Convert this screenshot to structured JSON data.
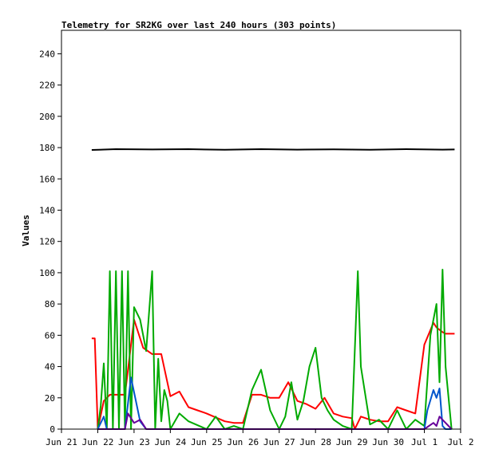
{
  "chart_data": {
    "type": "line",
    "title": "Telemetry for SR2KG over last 240 hours (303 points)",
    "xlabel": "",
    "ylabel": "Values",
    "xlim": [
      "2024-06-21T00:00",
      "2024-07-02T00:00"
    ],
    "ylim": [
      0,
      255
    ],
    "x_ticks": [
      {
        "value": "2024-06-21T00:00",
        "label": "Jun 21"
      },
      {
        "value": "2024-06-22T00:00",
        "label": "Jun 22"
      },
      {
        "value": "2024-06-23T00:00",
        "label": "Jun 23"
      },
      {
        "value": "2024-06-24T00:00",
        "label": "Jun 24"
      },
      {
        "value": "2024-06-25T00:00",
        "label": "Jun 25"
      },
      {
        "value": "2024-06-26T00:00",
        "label": "Jun 26"
      },
      {
        "value": "2024-06-27T00:00",
        "label": "Jun 27"
      },
      {
        "value": "2024-06-28T00:00",
        "label": "Jun 28"
      },
      {
        "value": "2024-06-29T00:00",
        "label": "Jun 29"
      },
      {
        "value": "2024-06-30T00:00",
        "label": "Jun 30"
      },
      {
        "value": "2024-07-01T00:00",
        "label": "Jul 1"
      },
      {
        "value": "2024-07-02T00:00",
        "label": "Jul 2"
      }
    ],
    "y_ticks": [
      0,
      20,
      40,
      60,
      80,
      100,
      120,
      140,
      160,
      180,
      200,
      220,
      240
    ],
    "grid": false,
    "legend": "none",
    "series": [
      {
        "color": "#000000",
        "x": [
          "2024-06-21T20:00",
          "2024-06-22T12:00",
          "2024-06-23T12:00",
          "2024-06-24T12:00",
          "2024-06-25T12:00",
          "2024-06-26T12:00",
          "2024-06-27T12:00",
          "2024-06-28T12:00",
          "2024-06-29T12:00",
          "2024-06-30T12:00",
          "2024-07-01T12:00",
          "2024-07-01T20:00"
        ],
        "values": [
          178.5,
          179,
          178.8,
          179,
          178.6,
          179,
          178.7,
          178.9,
          178.6,
          179,
          178.7,
          178.8
        ]
      },
      {
        "color": "#ff0000",
        "x": [
          "2024-06-21T20:00",
          "2024-06-21T22:00",
          "2024-06-22T00:00",
          "2024-06-22T04:00",
          "2024-06-22T08:00",
          "2024-06-22T12:00",
          "2024-06-22T18:00",
          "2024-06-23T00:00",
          "2024-06-23T06:00",
          "2024-06-23T12:00",
          "2024-06-23T18:00",
          "2024-06-24T00:00",
          "2024-06-24T06:00",
          "2024-06-24T12:00",
          "2024-06-24T18:00",
          "2024-06-25T00:00",
          "2024-06-25T12:00",
          "2024-06-25T18:00",
          "2024-06-26T00:00",
          "2024-06-26T06:00",
          "2024-06-26T12:00",
          "2024-06-26T18:00",
          "2024-06-27T00:00",
          "2024-06-27T06:00",
          "2024-06-27T12:00",
          "2024-06-27T18:00",
          "2024-06-28T00:00",
          "2024-06-28T06:00",
          "2024-06-28T12:00",
          "2024-06-28T18:00",
          "2024-06-29T00:00",
          "2024-06-29T02:00",
          "2024-06-29T06:00",
          "2024-06-29T12:00",
          "2024-06-29T18:00",
          "2024-06-30T00:00",
          "2024-06-30T06:00",
          "2024-06-30T12:00",
          "2024-06-30T18:00",
          "2024-07-01T00:00",
          "2024-07-01T06:00",
          "2024-07-01T08:00",
          "2024-07-01T12:00",
          "2024-07-01T14:00",
          "2024-07-01T20:00"
        ],
        "values": [
          58,
          58,
          0,
          18,
          22,
          22,
          22,
          70,
          52,
          48,
          48,
          21,
          24,
          14,
          12,
          10,
          5,
          4,
          4,
          22,
          22,
          20,
          20,
          30,
          18,
          16,
          13,
          20,
          10,
          8,
          7,
          0,
          8,
          6,
          5,
          5,
          14,
          12,
          10,
          54,
          68,
          65,
          62,
          61,
          61
        ]
      },
      {
        "color": "#00aa00",
        "x": [
          "2024-06-22T00:00",
          "2024-06-22T02:00",
          "2024-06-22T04:00",
          "2024-06-22T06:00",
          "2024-06-22T08:00",
          "2024-06-22T10:00",
          "2024-06-22T12:00",
          "2024-06-22T14:00",
          "2024-06-22T16:00",
          "2024-06-22T18:00",
          "2024-06-22T20:00",
          "2024-06-22T22:00",
          "2024-06-23T00:00",
          "2024-06-23T04:00",
          "2024-06-23T08:00",
          "2024-06-23T12:00",
          "2024-06-23T14:00",
          "2024-06-23T16:00",
          "2024-06-23T18:00",
          "2024-06-23T20:00",
          "2024-06-23T22:00",
          "2024-06-24T00:00",
          "2024-06-24T06:00",
          "2024-06-24T12:00",
          "2024-06-25T00:00",
          "2024-06-25T06:00",
          "2024-06-25T12:00",
          "2024-06-25T18:00",
          "2024-06-26T00:00",
          "2024-06-26T06:00",
          "2024-06-26T12:00",
          "2024-06-26T18:00",
          "2024-06-27T00:00",
          "2024-06-27T04:00",
          "2024-06-27T08:00",
          "2024-06-27T12:00",
          "2024-06-27T16:00",
          "2024-06-27T20:00",
          "2024-06-28T00:00",
          "2024-06-28T04:00",
          "2024-06-28T08:00",
          "2024-06-28T12:00",
          "2024-06-28T18:00",
          "2024-06-29T00:00",
          "2024-06-29T04:00",
          "2024-06-29T06:00",
          "2024-06-29T12:00",
          "2024-06-29T18:00",
          "2024-06-30T00:00",
          "2024-06-30T06:00",
          "2024-06-30T12:00",
          "2024-06-30T18:00",
          "2024-07-01T00:00",
          "2024-07-01T04:00",
          "2024-07-01T08:00",
          "2024-07-01T10:00",
          "2024-07-01T12:00",
          "2024-07-01T14:00",
          "2024-07-01T18:00"
        ],
        "values": [
          0,
          15,
          42,
          0,
          101,
          0,
          101,
          0,
          101,
          0,
          101,
          0,
          78,
          70,
          50,
          101,
          0,
          45,
          5,
          25,
          18,
          0,
          10,
          5,
          0,
          8,
          0,
          2,
          0,
          25,
          38,
          12,
          0,
          8,
          30,
          6,
          18,
          40,
          52,
          20,
          12,
          6,
          2,
          0,
          101,
          40,
          3,
          6,
          0,
          12,
          0,
          6,
          2,
          60,
          80,
          30,
          102,
          40,
          0
        ]
      },
      {
        "color": "#0055cc",
        "x": [
          "2024-06-22T00:00",
          "2024-06-22T04:00",
          "2024-06-22T06:00",
          "2024-06-22T12:00",
          "2024-06-22T18:00",
          "2024-06-22T22:00",
          "2024-06-23T04:00",
          "2024-06-23T08:00",
          "2024-06-23T12:00",
          "2024-06-30T00:00",
          "2024-07-01T00:00",
          "2024-07-01T02:00",
          "2024-07-01T06:00",
          "2024-07-01T08:00",
          "2024-07-01T10:00",
          "2024-07-01T12:00",
          "2024-07-01T14:00",
          "2024-07-01T18:00"
        ],
        "values": [
          0,
          8,
          0,
          0,
          0,
          33,
          5,
          0,
          0,
          0,
          0,
          12,
          25,
          20,
          26,
          2,
          0,
          0
        ]
      },
      {
        "color": "#660099",
        "x": [
          "2024-06-22T00:00",
          "2024-06-22T18:00",
          "2024-06-22T20:00",
          "2024-06-23T00:00",
          "2024-06-23T04:00",
          "2024-06-23T08:00",
          "2024-06-30T00:00",
          "2024-07-01T00:00",
          "2024-07-01T06:00",
          "2024-07-01T08:00",
          "2024-07-01T10:00",
          "2024-07-01T18:00"
        ],
        "values": [
          0,
          0,
          10,
          4,
          6,
          0,
          0,
          0,
          4,
          2,
          8,
          0
        ]
      }
    ]
  }
}
